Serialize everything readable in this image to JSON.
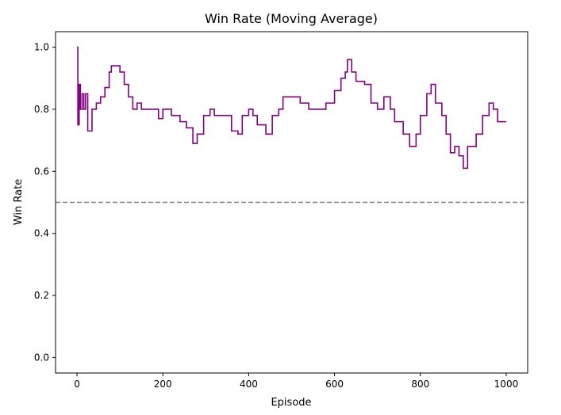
{
  "chart_data": {
    "type": "line",
    "title": "Win Rate (Moving Average)",
    "xlabel": "Episode",
    "ylabel": "Win Rate",
    "xlim": [
      -50,
      1050
    ],
    "ylim": [
      -0.05,
      1.05
    ],
    "xticks": [
      0,
      200,
      400,
      600,
      800,
      1000
    ],
    "yticks": [
      0.0,
      0.2,
      0.4,
      0.6,
      0.8,
      1.0
    ],
    "ytick_labels": [
      "0.0",
      "0.2",
      "0.4",
      "0.6",
      "0.8",
      "1.0"
    ],
    "grid": false,
    "series": [
      {
        "color": "#800080",
        "x": [
          0,
          2,
          5,
          8,
          12,
          16,
          20,
          25,
          35,
          45,
          55,
          65,
          75,
          80,
          90,
          100,
          110,
          120,
          130,
          140,
          150,
          165,
          180,
          190,
          200,
          210,
          220,
          240,
          255,
          270,
          280,
          295,
          310,
          320,
          340,
          360,
          375,
          385,
          400,
          410,
          420,
          440,
          455,
          470,
          480,
          500,
          520,
          540,
          560,
          580,
          600,
          615,
          625,
          630,
          640,
          650,
          670,
          685,
          700,
          715,
          730,
          740,
          760,
          775,
          790,
          800,
          815,
          825,
          835,
          850,
          860,
          870,
          880,
          890,
          900,
          910,
          930,
          945,
          960,
          970,
          980,
          990,
          1000
        ],
        "y": [
          1.0,
          0.75,
          0.88,
          0.8,
          0.85,
          0.8,
          0.85,
          0.73,
          0.8,
          0.82,
          0.84,
          0.87,
          0.92,
          0.94,
          0.94,
          0.92,
          0.88,
          0.84,
          0.8,
          0.82,
          0.8,
          0.8,
          0.8,
          0.77,
          0.8,
          0.8,
          0.78,
          0.76,
          0.74,
          0.69,
          0.72,
          0.78,
          0.8,
          0.78,
          0.78,
          0.73,
          0.72,
          0.78,
          0.8,
          0.78,
          0.75,
          0.72,
          0.78,
          0.8,
          0.84,
          0.84,
          0.82,
          0.8,
          0.8,
          0.82,
          0.86,
          0.9,
          0.92,
          0.96,
          0.92,
          0.89,
          0.88,
          0.82,
          0.8,
          0.84,
          0.8,
          0.76,
          0.72,
          0.68,
          0.72,
          0.78,
          0.85,
          0.88,
          0.82,
          0.78,
          0.72,
          0.66,
          0.68,
          0.65,
          0.61,
          0.68,
          0.72,
          0.78,
          0.82,
          0.8,
          0.76,
          0.76,
          0.76
        ]
      }
    ],
    "reference_line": {
      "y": 0.5,
      "style": "dashed",
      "color": "#808080"
    }
  }
}
